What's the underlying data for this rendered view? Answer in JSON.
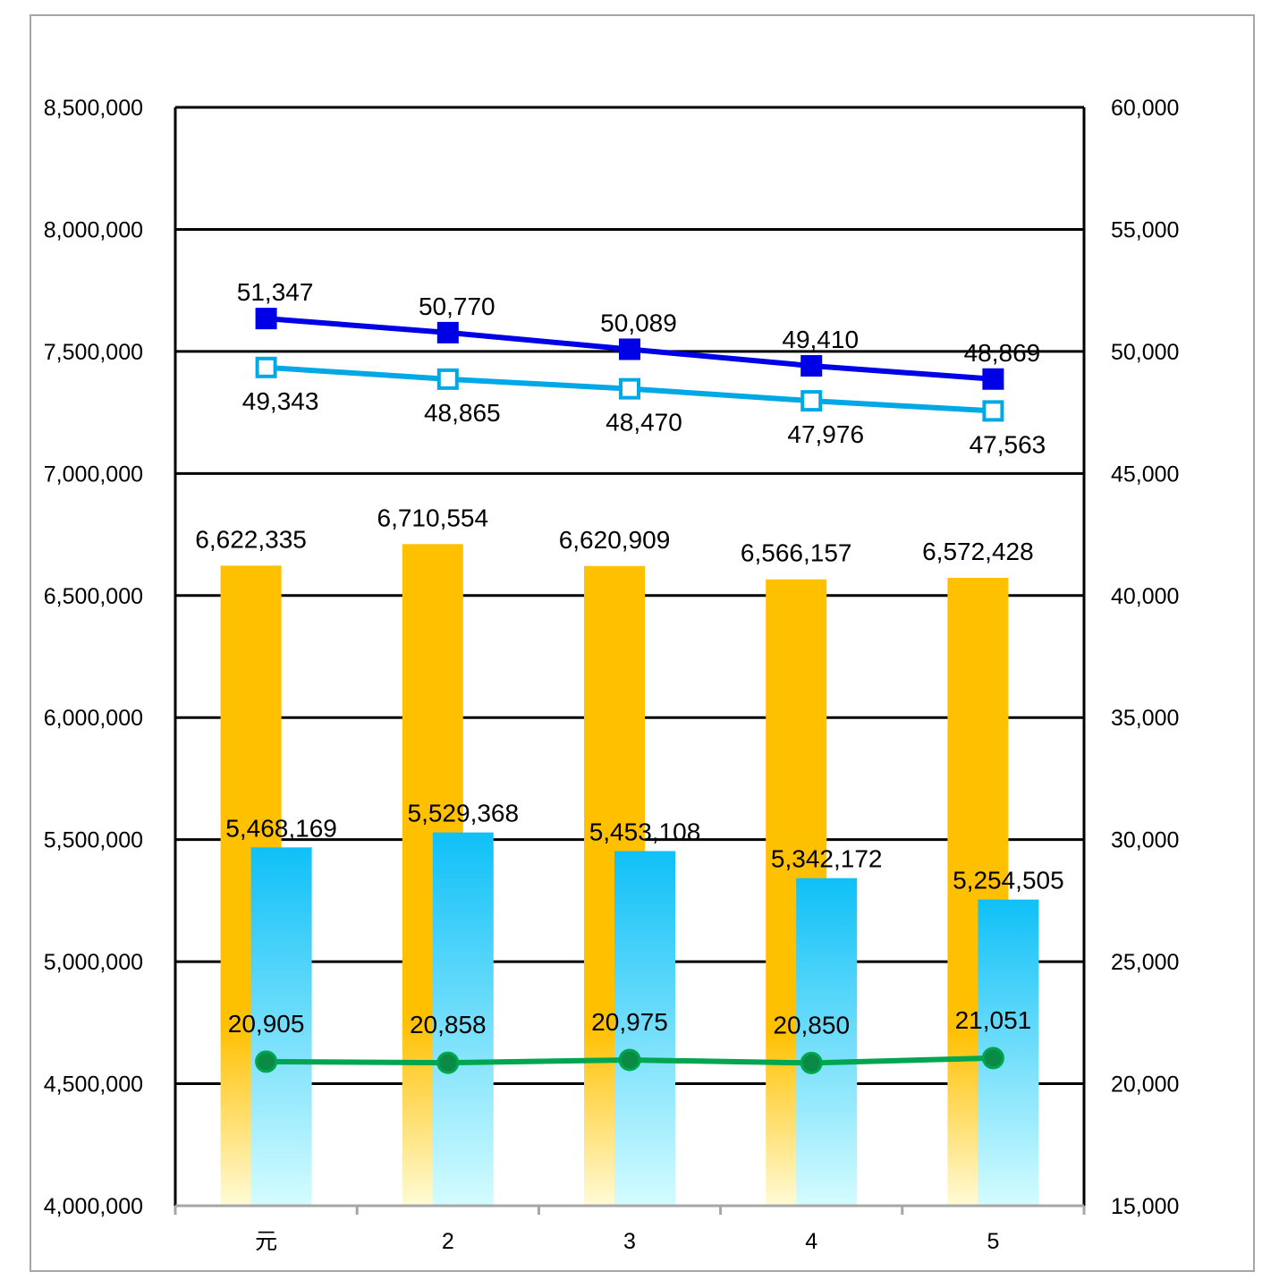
{
  "chart_data": {
    "type": "bar",
    "categories": [
      "元",
      "2",
      "3",
      "4",
      "5"
    ],
    "y_left": {
      "min": 4000000,
      "max": 8500000,
      "step": 500000,
      "tick_labels": [
        "4,000,000",
        "4,500,000",
        "5,000,000",
        "5,500,000",
        "6,000,000",
        "6,500,000",
        "7,000,000",
        "7,500,000",
        "8,000,000",
        "8,500,000"
      ]
    },
    "y_right": {
      "min": 15000,
      "max": 60000,
      "step": 5000,
      "tick_labels": [
        "15,000",
        "20,000",
        "25,000",
        "30,000",
        "35,000",
        "40,000",
        "45,000",
        "50,000",
        "55,000",
        "60,000"
      ]
    },
    "grid": true,
    "bar_series": [
      {
        "axis": "left",
        "color": "#ffc000",
        "values": [
          6622335,
          6710554,
          6620909,
          6566157,
          6572428
        ],
        "labels": [
          "6,622,335",
          "6,710,554",
          "6,620,909",
          "6,566,157",
          "6,572,428"
        ]
      },
      {
        "axis": "left",
        "color": "#00b0f0",
        "values": [
          5468169,
          5529368,
          5453108,
          5342172,
          5254505
        ],
        "labels": [
          "5,468,169",
          "5,529,368",
          "5,453,108",
          "5,342,172",
          "5,254,505"
        ]
      }
    ],
    "line_series": [
      {
        "axis": "right",
        "color": "#0000e6",
        "marker": "filled-square",
        "values": [
          51347,
          50770,
          50089,
          49410,
          48869
        ],
        "labels": [
          "51,347",
          "50,770",
          "50,089",
          "49,410",
          "48,869"
        ]
      },
      {
        "axis": "right",
        "color": "#00a8e6",
        "marker": "hollow-square",
        "values": [
          49343,
          48865,
          48470,
          47976,
          47563
        ],
        "labels": [
          "49,343",
          "48,865",
          "48,470",
          "47,976",
          "47,563"
        ]
      },
      {
        "axis": "right",
        "color": "#00a550",
        "marker": "circle",
        "values": [
          20905,
          20858,
          20975,
          20850,
          21051
        ],
        "labels": [
          "20,905",
          "20,858",
          "20,975",
          "20,850",
          "21,051"
        ]
      }
    ]
  }
}
